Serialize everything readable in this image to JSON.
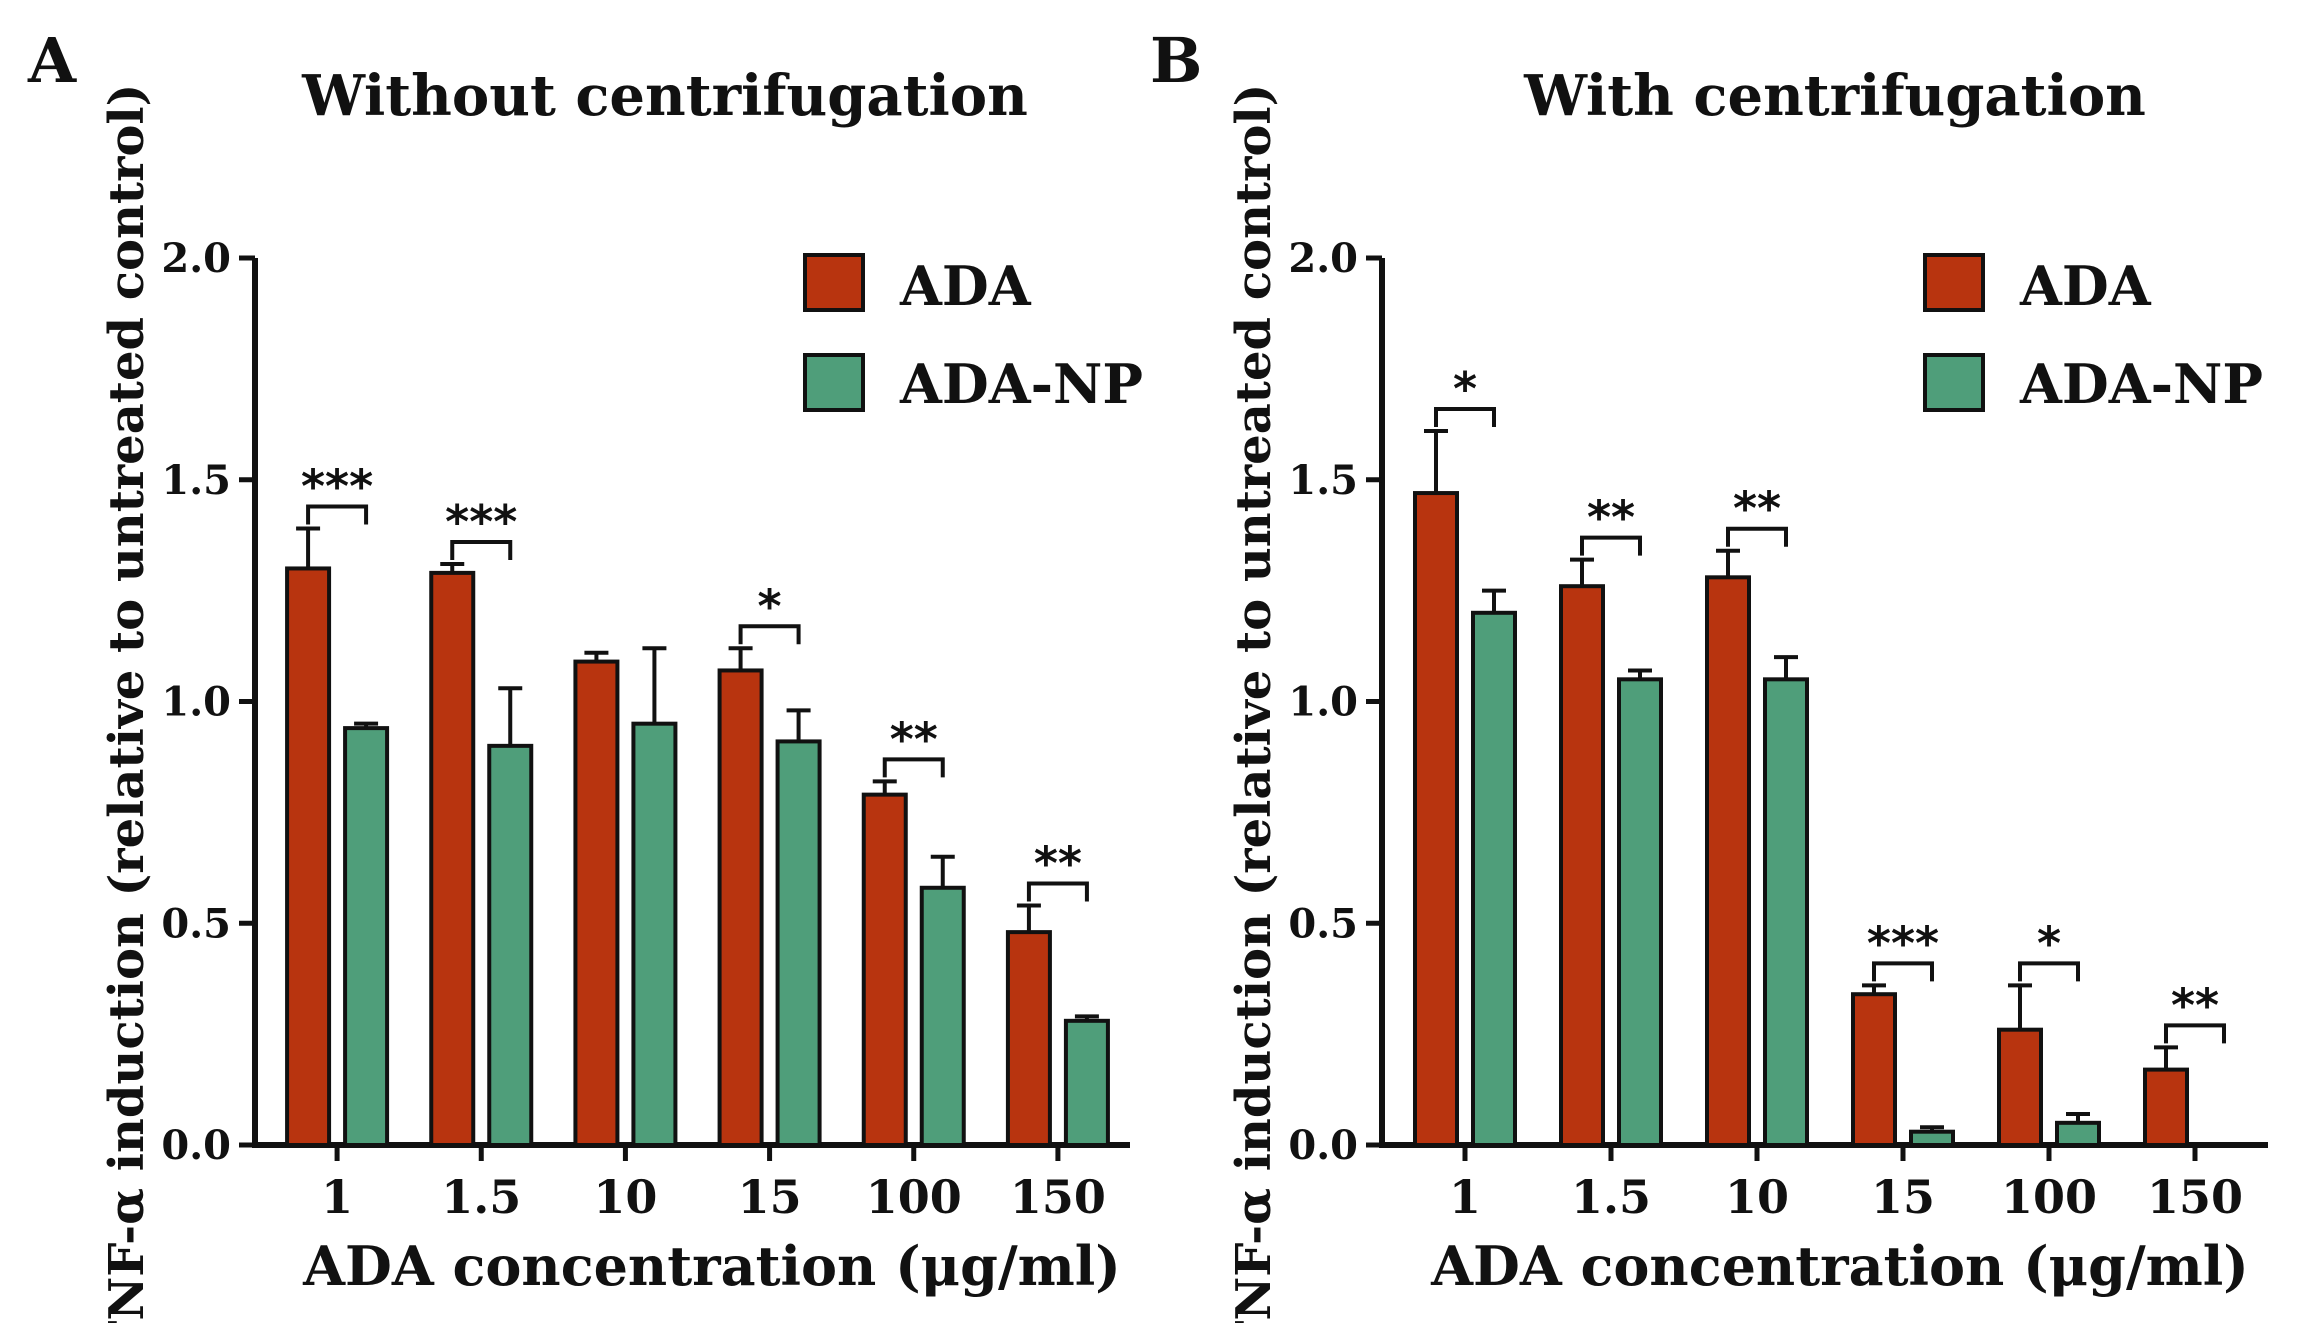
{
  "colors": {
    "ada": "#b8340f",
    "ada_np": "#4f9e7a"
  },
  "chart_data": [
    {
      "type": "bar",
      "panel": "A",
      "title": "Without centrifugation",
      "xlabel": "ADA concentration (μg/ml)",
      "ylabel": "TNF-α induction  (relative to untreated control)",
      "ylim": [
        0,
        2.0
      ],
      "yticks": [
        "0.0",
        "0.5",
        "1.0",
        "1.5",
        "2.0"
      ],
      "legend_position": "top-right",
      "categories": [
        "1",
        "1.5",
        "10",
        "15",
        "100",
        "150"
      ],
      "series": [
        {
          "name": "ADA",
          "values": [
            1.3,
            1.29,
            1.09,
            1.07,
            0.79,
            0.48
          ],
          "errors": [
            0.09,
            0.02,
            0.02,
            0.05,
            0.03,
            0.06
          ]
        },
        {
          "name": "ADA-NP",
          "values": [
            0.94,
            0.9,
            0.95,
            0.91,
            0.58,
            0.28
          ],
          "errors": [
            0.01,
            0.13,
            0.17,
            0.07,
            0.07,
            0.01
          ]
        }
      ],
      "significance": [
        "***",
        "***",
        "",
        "*",
        "**",
        "**"
      ]
    },
    {
      "type": "bar",
      "panel": "B",
      "title": "With centrifugation",
      "xlabel": "ADA concentration (μg/ml)",
      "ylabel": "TNF-α induction  (relative to untreated control)",
      "ylim": [
        0,
        2.0
      ],
      "yticks": [
        "0.0",
        "0.5",
        "1.0",
        "1.5",
        "2.0"
      ],
      "legend_position": "top-right",
      "categories": [
        "1",
        "1.5",
        "10",
        "15",
        "100",
        "150"
      ],
      "series": [
        {
          "name": "ADA",
          "values": [
            1.47,
            1.26,
            1.28,
            0.34,
            0.26,
            0.17
          ],
          "errors": [
            0.14,
            0.06,
            0.06,
            0.02,
            0.1,
            0.05
          ]
        },
        {
          "name": "ADA-NP",
          "values": [
            1.2,
            1.05,
            1.05,
            0.03,
            0.05,
            0.0
          ],
          "errors": [
            0.05,
            0.02,
            0.05,
            0.01,
            0.02,
            0.0
          ]
        }
      ],
      "significance": [
        "*",
        "**",
        "**",
        "***",
        "*",
        "**"
      ]
    }
  ]
}
